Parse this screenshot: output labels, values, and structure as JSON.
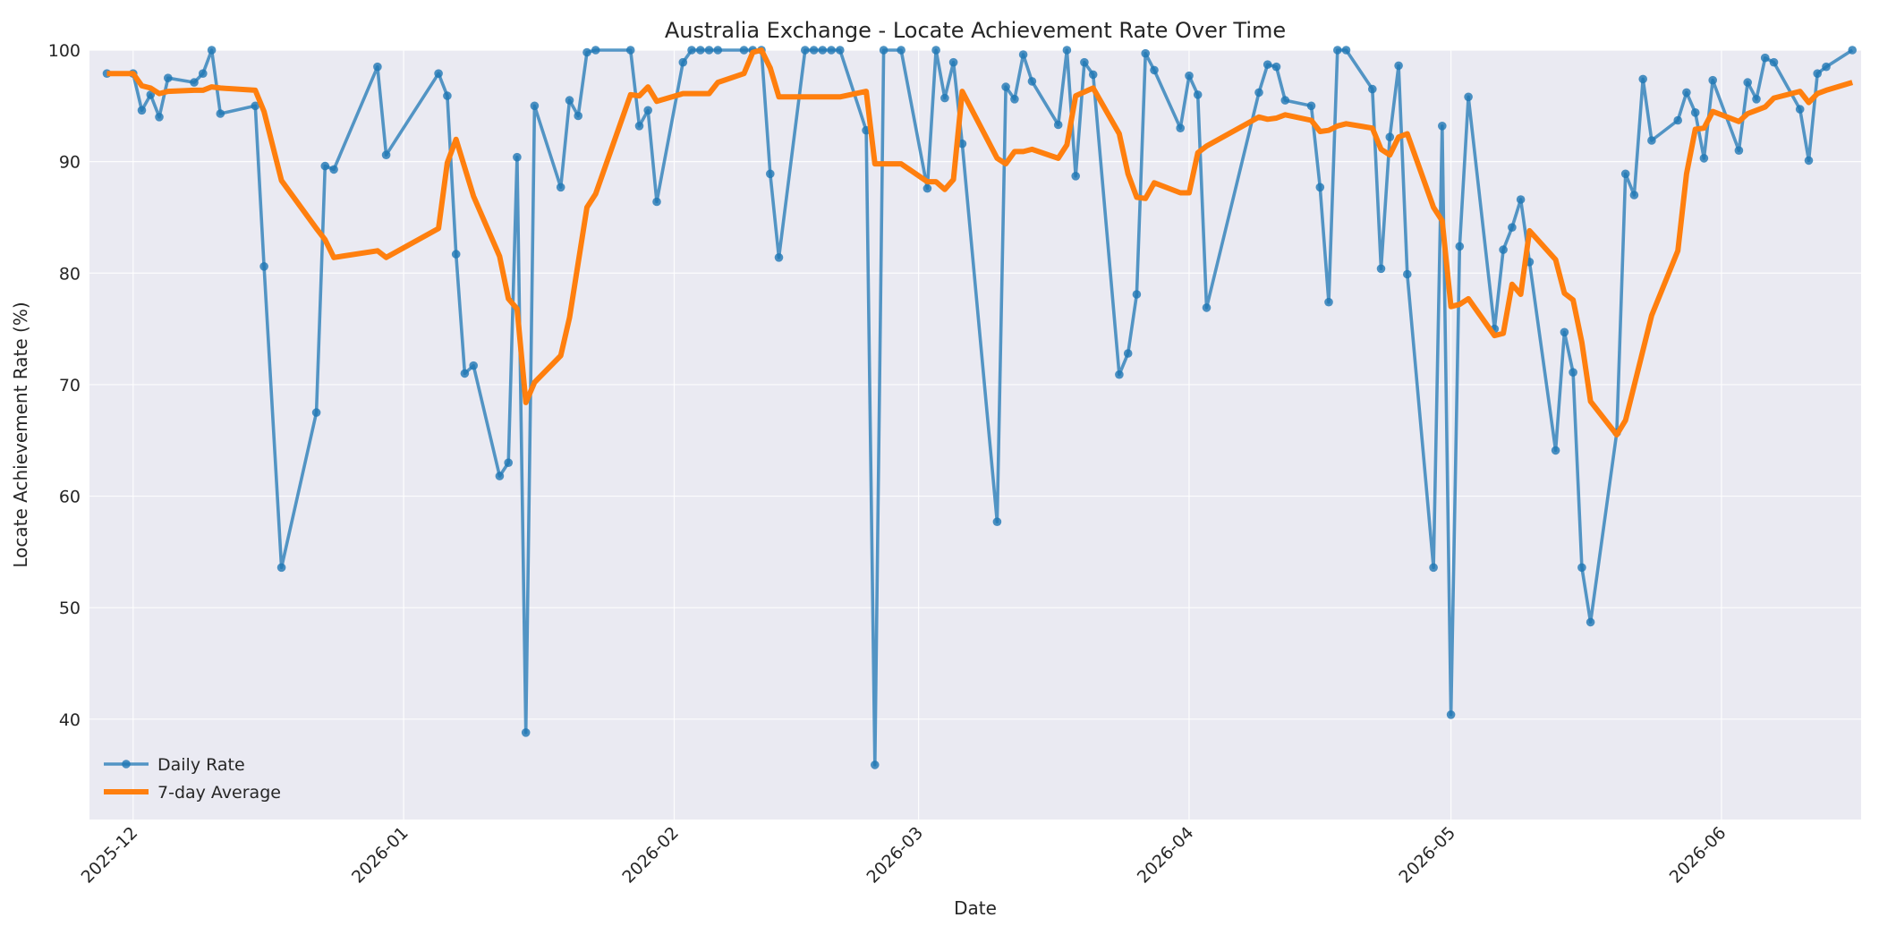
{
  "chart_data": {
    "type": "line",
    "title": "Australia Exchange - Locate Achievement Rate Over Time",
    "xlabel": "Date",
    "ylabel": "Locate Achievement Rate (%)",
    "ylim": [
      31,
      100
    ],
    "yticks": [
      40,
      50,
      60,
      70,
      80,
      90,
      100
    ],
    "xlim": [
      "2025-11-26",
      "2026-06-17"
    ],
    "xticks": [
      "2025-12-01",
      "2026-01-01",
      "2026-02-01",
      "2026-03-01",
      "2026-04-01",
      "2026-05-01",
      "2026-06-01"
    ],
    "xtick_labels": [
      "2025-12",
      "2026-01",
      "2026-02",
      "2026-03",
      "2026-04",
      "2026-05",
      "2026-06"
    ],
    "grid": true,
    "legend_position": "bottom-left",
    "colors": {
      "daily": "#1f77b4",
      "avg": "#ff7f0e",
      "plot_bg": "#eaeaf2"
    },
    "series": [
      {
        "name": "Daily Rate",
        "style": "line-with-markers",
        "points": [
          [
            "2025-11-28",
            97.9
          ],
          [
            "2025-12-01",
            97.9
          ],
          [
            "2025-12-02",
            94.6
          ],
          [
            "2025-12-03",
            96.0
          ],
          [
            "2025-12-04",
            94.0
          ],
          [
            "2025-12-05",
            97.5
          ],
          [
            "2025-12-08",
            97.1
          ],
          [
            "2025-12-09",
            97.9
          ],
          [
            "2025-12-10",
            100.0
          ],
          [
            "2025-12-11",
            94.3
          ],
          [
            "2025-12-15",
            95.0
          ],
          [
            "2025-12-16",
            80.6
          ],
          [
            "2025-12-18",
            53.6
          ],
          [
            "2025-12-22",
            67.5
          ],
          [
            "2025-12-23",
            89.6
          ],
          [
            "2025-12-24",
            89.3
          ],
          [
            "2025-12-29",
            98.5
          ],
          [
            "2025-12-30",
            90.6
          ],
          [
            "2026-01-05",
            97.9
          ],
          [
            "2026-01-06",
            95.9
          ],
          [
            "2026-01-07",
            81.7
          ],
          [
            "2026-01-08",
            71.0
          ],
          [
            "2026-01-09",
            71.7
          ],
          [
            "2026-01-12",
            61.8
          ],
          [
            "2026-01-13",
            63.0
          ],
          [
            "2026-01-14",
            90.4
          ],
          [
            "2026-01-15",
            38.8
          ],
          [
            "2026-01-16",
            95.0
          ],
          [
            "2026-01-19",
            87.7
          ],
          [
            "2026-01-20",
            95.5
          ],
          [
            "2026-01-21",
            94.1
          ],
          [
            "2026-01-22",
            99.8
          ],
          [
            "2026-01-23",
            100.0
          ],
          [
            "2026-01-27",
            100.0
          ],
          [
            "2026-01-28",
            93.2
          ],
          [
            "2026-01-29",
            94.6
          ],
          [
            "2026-01-30",
            86.4
          ],
          [
            "2026-02-02",
            98.9
          ],
          [
            "2026-02-03",
            100.0
          ],
          [
            "2026-02-04",
            100.0
          ],
          [
            "2026-02-05",
            100.0
          ],
          [
            "2026-02-06",
            100.0
          ],
          [
            "2026-02-09",
            100.0
          ],
          [
            "2026-02-10",
            100.0
          ],
          [
            "2026-02-11",
            100.0
          ],
          [
            "2026-02-12",
            88.9
          ],
          [
            "2026-02-13",
            81.4
          ],
          [
            "2026-02-16",
            100.0
          ],
          [
            "2026-02-17",
            100.0
          ],
          [
            "2026-02-18",
            100.0
          ],
          [
            "2026-02-19",
            100.0
          ],
          [
            "2026-02-20",
            100.0
          ],
          [
            "2026-02-23",
            92.8
          ],
          [
            "2026-02-24",
            35.9
          ],
          [
            "2026-02-25",
            100.0
          ],
          [
            "2026-02-27",
            100.0
          ],
          [
            "2026-03-02",
            87.6
          ],
          [
            "2026-03-03",
            100.0
          ],
          [
            "2026-03-04",
            95.7
          ],
          [
            "2026-03-05",
            98.9
          ],
          [
            "2026-03-06",
            91.6
          ],
          [
            "2026-03-10",
            57.7
          ],
          [
            "2026-03-11",
            96.7
          ],
          [
            "2026-03-12",
            95.6
          ],
          [
            "2026-03-13",
            99.6
          ],
          [
            "2026-03-14",
            97.2
          ],
          [
            "2026-03-17",
            93.3
          ],
          [
            "2026-03-18",
            100.0
          ],
          [
            "2026-03-19",
            88.7
          ],
          [
            "2026-03-20",
            98.9
          ],
          [
            "2026-03-21",
            97.8
          ],
          [
            "2026-03-24",
            70.9
          ],
          [
            "2026-03-25",
            72.8
          ],
          [
            "2026-03-26",
            78.1
          ],
          [
            "2026-03-27",
            99.7
          ],
          [
            "2026-03-28",
            98.2
          ],
          [
            "2026-03-31",
            93.0
          ],
          [
            "2026-04-01",
            97.7
          ],
          [
            "2026-04-02",
            96.0
          ],
          [
            "2026-04-03",
            76.9
          ],
          [
            "2026-04-09",
            96.2
          ],
          [
            "2026-04-10",
            98.7
          ],
          [
            "2026-04-11",
            98.5
          ],
          [
            "2026-04-12",
            95.5
          ],
          [
            "2026-04-15",
            95.0
          ],
          [
            "2026-04-16",
            87.7
          ],
          [
            "2026-04-17",
            77.4
          ],
          [
            "2026-04-18",
            100.0
          ],
          [
            "2026-04-19",
            100.0
          ],
          [
            "2026-04-22",
            96.5
          ],
          [
            "2026-04-23",
            80.4
          ],
          [
            "2026-04-24",
            92.2
          ],
          [
            "2026-04-25",
            98.6
          ],
          [
            "2026-04-26",
            79.9
          ],
          [
            "2026-04-29",
            53.6
          ],
          [
            "2026-04-30",
            93.2
          ],
          [
            "2026-05-01",
            40.4
          ],
          [
            "2026-05-02",
            82.4
          ],
          [
            "2026-05-03",
            95.8
          ],
          [
            "2026-05-06",
            75.0
          ],
          [
            "2026-05-07",
            82.1
          ],
          [
            "2026-05-08",
            84.1
          ],
          [
            "2026-05-09",
            86.6
          ],
          [
            "2026-05-10",
            81.0
          ],
          [
            "2026-05-13",
            64.1
          ],
          [
            "2026-05-14",
            74.7
          ],
          [
            "2026-05-15",
            71.1
          ],
          [
            "2026-05-16",
            53.6
          ],
          [
            "2026-05-17",
            48.7
          ],
          [
            "2026-05-20",
            65.7
          ],
          [
            "2026-05-21",
            88.9
          ],
          [
            "2026-05-22",
            87.0
          ],
          [
            "2026-05-23",
            97.4
          ],
          [
            "2026-05-24",
            91.9
          ],
          [
            "2026-05-27",
            93.7
          ],
          [
            "2026-05-28",
            96.2
          ],
          [
            "2026-05-29",
            94.4
          ],
          [
            "2026-05-30",
            90.3
          ],
          [
            "2026-05-31",
            97.3
          ],
          [
            "2026-06-03",
            91.0
          ],
          [
            "2026-06-04",
            97.1
          ],
          [
            "2026-06-05",
            95.6
          ],
          [
            "2026-06-06",
            99.3
          ],
          [
            "2026-06-07",
            98.9
          ],
          [
            "2026-06-10",
            94.7
          ],
          [
            "2026-06-11",
            90.1
          ],
          [
            "2026-06-12",
            97.9
          ],
          [
            "2026-06-13",
            98.5
          ],
          [
            "2026-06-16",
            100.0
          ]
        ]
      },
      {
        "name": "7-day Average",
        "style": "thick-line",
        "points": [
          [
            "2025-11-28",
            97.9
          ],
          [
            "2025-12-01",
            97.9
          ],
          [
            "2025-12-02",
            96.8
          ],
          [
            "2025-12-03",
            96.6
          ],
          [
            "2025-12-04",
            96.1
          ],
          [
            "2025-12-05",
            96.3
          ],
          [
            "2025-12-08",
            96.4
          ],
          [
            "2025-12-09",
            96.4
          ],
          [
            "2025-12-10",
            96.7
          ],
          [
            "2025-12-11",
            96.6
          ],
          [
            "2025-12-15",
            96.4
          ],
          [
            "2025-12-16",
            94.5
          ],
          [
            "2025-12-18",
            88.3
          ],
          [
            "2025-12-22",
            84.0
          ],
          [
            "2025-12-23",
            83.0
          ],
          [
            "2025-12-24",
            81.4
          ],
          [
            "2025-12-29",
            82.0
          ],
          [
            "2025-12-30",
            81.4
          ],
          [
            "2026-01-05",
            84.0
          ],
          [
            "2026-01-06",
            89.9
          ],
          [
            "2026-01-07",
            92.0
          ],
          [
            "2026-01-09",
            86.9
          ],
          [
            "2026-01-12",
            81.5
          ],
          [
            "2026-01-13",
            77.7
          ],
          [
            "2026-01-14",
            76.8
          ],
          [
            "2026-01-15",
            68.4
          ],
          [
            "2026-01-16",
            70.2
          ],
          [
            "2026-01-19",
            72.6
          ],
          [
            "2026-01-20",
            76.0
          ],
          [
            "2026-01-22",
            85.9
          ],
          [
            "2026-01-23",
            87.1
          ],
          [
            "2026-01-27",
            96.0
          ],
          [
            "2026-01-28",
            95.9
          ],
          [
            "2026-01-29",
            96.7
          ],
          [
            "2026-01-30",
            95.4
          ],
          [
            "2026-02-02",
            96.1
          ],
          [
            "2026-02-05",
            96.1
          ],
          [
            "2026-02-06",
            97.1
          ],
          [
            "2026-02-09",
            97.9
          ],
          [
            "2026-02-10",
            99.8
          ],
          [
            "2026-02-11",
            100.0
          ],
          [
            "2026-02-12",
            98.4
          ],
          [
            "2026-02-13",
            95.8
          ],
          [
            "2026-02-20",
            95.8
          ],
          [
            "2026-02-23",
            96.3
          ],
          [
            "2026-02-24",
            89.8
          ],
          [
            "2026-02-27",
            89.8
          ],
          [
            "2026-03-02",
            88.2
          ],
          [
            "2026-03-03",
            88.2
          ],
          [
            "2026-03-04",
            87.5
          ],
          [
            "2026-03-05",
            88.4
          ],
          [
            "2026-03-06",
            96.3
          ],
          [
            "2026-03-10",
            90.3
          ],
          [
            "2026-03-11",
            89.8
          ],
          [
            "2026-03-12",
            90.9
          ],
          [
            "2026-03-13",
            90.9
          ],
          [
            "2026-03-14",
            91.1
          ],
          [
            "2026-03-17",
            90.3
          ],
          [
            "2026-03-18",
            91.5
          ],
          [
            "2026-03-19",
            95.9
          ],
          [
            "2026-03-21",
            96.6
          ],
          [
            "2026-03-24",
            92.5
          ],
          [
            "2026-03-25",
            88.9
          ],
          [
            "2026-03-26",
            86.8
          ],
          [
            "2026-03-27",
            86.7
          ],
          [
            "2026-03-28",
            88.1
          ],
          [
            "2026-03-31",
            87.2
          ],
          [
            "2026-04-01",
            87.2
          ],
          [
            "2026-04-02",
            90.8
          ],
          [
            "2026-04-03",
            91.4
          ],
          [
            "2026-04-09",
            94.0
          ],
          [
            "2026-04-10",
            93.8
          ],
          [
            "2026-04-11",
            93.9
          ],
          [
            "2026-04-12",
            94.2
          ],
          [
            "2026-04-15",
            93.7
          ],
          [
            "2026-04-16",
            92.7
          ],
          [
            "2026-04-17",
            92.8
          ],
          [
            "2026-04-18",
            93.2
          ],
          [
            "2026-04-19",
            93.4
          ],
          [
            "2026-04-22",
            93.0
          ],
          [
            "2026-04-23",
            91.1
          ],
          [
            "2026-04-24",
            90.6
          ],
          [
            "2026-04-25",
            92.2
          ],
          [
            "2026-04-26",
            92.5
          ],
          [
            "2026-04-29",
            85.9
          ],
          [
            "2026-04-30",
            84.7
          ],
          [
            "2026-05-01",
            77.0
          ],
          [
            "2026-05-02",
            77.2
          ],
          [
            "2026-05-03",
            77.7
          ],
          [
            "2026-05-06",
            74.4
          ],
          [
            "2026-05-07",
            74.6
          ],
          [
            "2026-05-08",
            79.0
          ],
          [
            "2026-05-09",
            78.1
          ],
          [
            "2026-05-10",
            83.8
          ],
          [
            "2026-05-13",
            81.2
          ],
          [
            "2026-05-14",
            78.2
          ],
          [
            "2026-05-15",
            77.6
          ],
          [
            "2026-05-16",
            73.8
          ],
          [
            "2026-05-17",
            68.5
          ],
          [
            "2026-05-20",
            65.5
          ],
          [
            "2026-05-21",
            66.8
          ],
          [
            "2026-05-24",
            76.2
          ],
          [
            "2026-05-27",
            82.0
          ],
          [
            "2026-05-28",
            88.9
          ],
          [
            "2026-05-29",
            92.9
          ],
          [
            "2026-05-30",
            93.0
          ],
          [
            "2026-05-31",
            94.5
          ],
          [
            "2026-06-03",
            93.6
          ],
          [
            "2026-06-04",
            94.3
          ],
          [
            "2026-06-05",
            94.6
          ],
          [
            "2026-06-06",
            94.9
          ],
          [
            "2026-06-07",
            95.7
          ],
          [
            "2026-06-10",
            96.3
          ],
          [
            "2026-06-11",
            95.3
          ],
          [
            "2026-06-12",
            96.1
          ],
          [
            "2026-06-13",
            96.4
          ],
          [
            "2026-06-16",
            97.1
          ]
        ]
      }
    ]
  }
}
